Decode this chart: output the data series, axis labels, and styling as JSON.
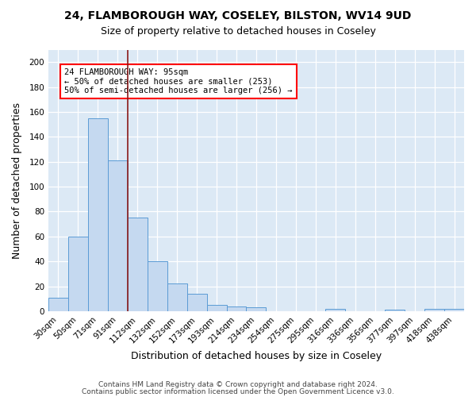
{
  "title1": "24, FLAMBOROUGH WAY, COSELEY, BILSTON, WV14 9UD",
  "title2": "Size of property relative to detached houses in Coseley",
  "xlabel": "Distribution of detached houses by size in Coseley",
  "ylabel": "Number of detached properties",
  "categories": [
    "30sqm",
    "50sqm",
    "71sqm",
    "91sqm",
    "112sqm",
    "132sqm",
    "152sqm",
    "173sqm",
    "193sqm",
    "214sqm",
    "234sqm",
    "254sqm",
    "275sqm",
    "295sqm",
    "316sqm",
    "336sqm",
    "356sqm",
    "377sqm",
    "397sqm",
    "418sqm",
    "438sqm"
  ],
  "values": [
    11,
    60,
    155,
    121,
    75,
    40,
    22,
    14,
    5,
    4,
    3,
    0,
    0,
    0,
    2,
    0,
    0,
    1,
    0,
    2,
    2
  ],
  "bar_color": "#c5d9f0",
  "bar_edge_color": "#5b9bd5",
  "red_line_x": 3.5,
  "annotation_text": "24 FLAMBOROUGH WAY: 95sqm\n← 50% of detached houses are smaller (253)\n50% of semi-detached houses are larger (256) →",
  "annotation_box_color": "white",
  "annotation_box_edge_color": "red",
  "red_line_color": "#8b1a1a",
  "ylim": [
    0,
    210
  ],
  "yticks": [
    0,
    20,
    40,
    60,
    80,
    100,
    120,
    140,
    160,
    180,
    200
  ],
  "bg_color": "#dce9f5",
  "footer1": "Contains HM Land Registry data © Crown copyright and database right 2024.",
  "footer2": "Contains public sector information licensed under the Open Government Licence v3.0.",
  "title1_fontsize": 10,
  "title2_fontsize": 9,
  "xlabel_fontsize": 9,
  "ylabel_fontsize": 9,
  "tick_fontsize": 7.5,
  "footer_fontsize": 6.5,
  "annot_fontsize": 7.5
}
